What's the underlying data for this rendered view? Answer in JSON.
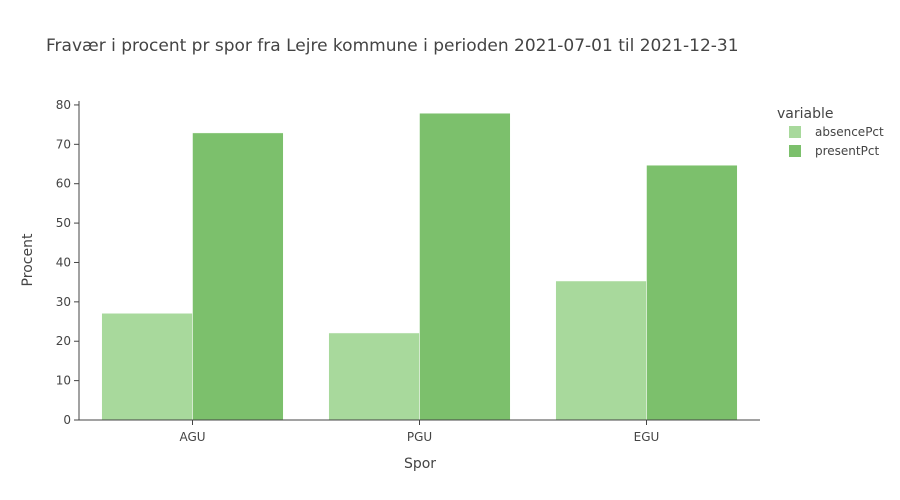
{
  "chart_data": {
    "type": "bar",
    "title": "Fravær i procent pr spor fra Lejre kommune i perioden 2021-07-01 til 2021-12-31",
    "xlabel": "Spor",
    "ylabel": "Procent",
    "categories": [
      "AGU",
      "PGU",
      "EGU"
    ],
    "ylim": [
      0,
      81
    ],
    "yticks": [
      0,
      10,
      20,
      30,
      40,
      50,
      60,
      70,
      80
    ],
    "grid": false,
    "legend": {
      "title": "variable",
      "position": "top-right"
    },
    "series": [
      {
        "name": "absencePct",
        "color": "#a8d99c",
        "values": [
          27.1,
          22.1,
          35.3
        ]
      },
      {
        "name": "presentPct",
        "color": "#7cc06c",
        "values": [
          72.9,
          77.9,
          64.7
        ]
      }
    ]
  }
}
